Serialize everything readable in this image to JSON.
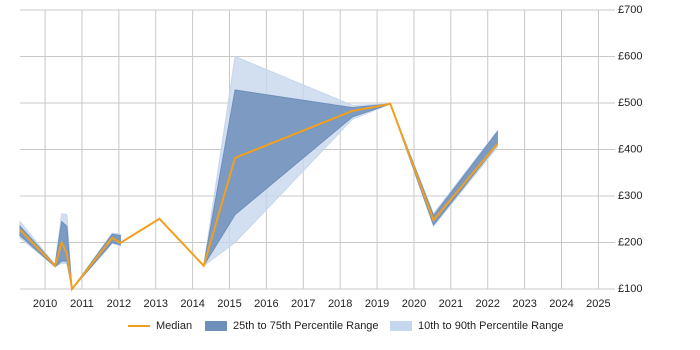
{
  "chart_data": {
    "type": "line-band",
    "x": [
      2009.32,
      2010.27,
      2010.45,
      2010.59,
      2010.73,
      2011.82,
      2012.04,
      2013.1,
      2014.3,
      2015.15,
      2018.33,
      2019.36,
      2020.53,
      2022.26
    ],
    "series": [
      {
        "name": "Median",
        "color": "#f0a01e",
        "values": [
          227,
          150,
          200,
          177,
          100,
          210,
          199,
          251,
          150,
          382,
          483,
          498,
          248,
          412
        ]
      }
    ],
    "bands": [
      {
        "name": "10th to 90th Percentile Range",
        "color": "#c5d7ec",
        "low": [
          210,
          148,
          155,
          155,
          100,
          198,
          193,
          null,
          150,
          200,
          465,
          498,
          235,
          405
        ],
        "high": [
          245,
          152,
          262,
          260,
          100,
          220,
          218,
          null,
          150,
          600,
          495,
          498,
          262,
          440
        ]
      },
      {
        "name": "25th to 75th Percentile Range",
        "color": "#6e8fba",
        "low": [
          215,
          148,
          160,
          160,
          100,
          200,
          195,
          null,
          150,
          260,
          470,
          498,
          238,
          410
        ],
        "high": [
          235,
          152,
          245,
          235,
          100,
          218,
          215,
          null,
          150,
          528,
          490,
          498,
          258,
          438
        ]
      }
    ],
    "xlim": [
      2009.32,
      2025.45
    ],
    "xticks": [
      2010,
      2011,
      2012,
      2013,
      2014,
      2015,
      2016,
      2017,
      2018,
      2019,
      2020,
      2021,
      2022,
      2023,
      2024,
      2025
    ],
    "ylim": [
      100,
      700
    ],
    "yticks": [
      {
        "value": 100,
        "label": "£100"
      },
      {
        "value": 200,
        "label": "£200"
      },
      {
        "value": 300,
        "label": "£300"
      },
      {
        "value": 400,
        "label": "£400"
      },
      {
        "value": 500,
        "label": "£500"
      },
      {
        "value": 600,
        "label": "£600"
      },
      {
        "value": 700,
        "label": "£700"
      }
    ],
    "grid": true
  }
}
